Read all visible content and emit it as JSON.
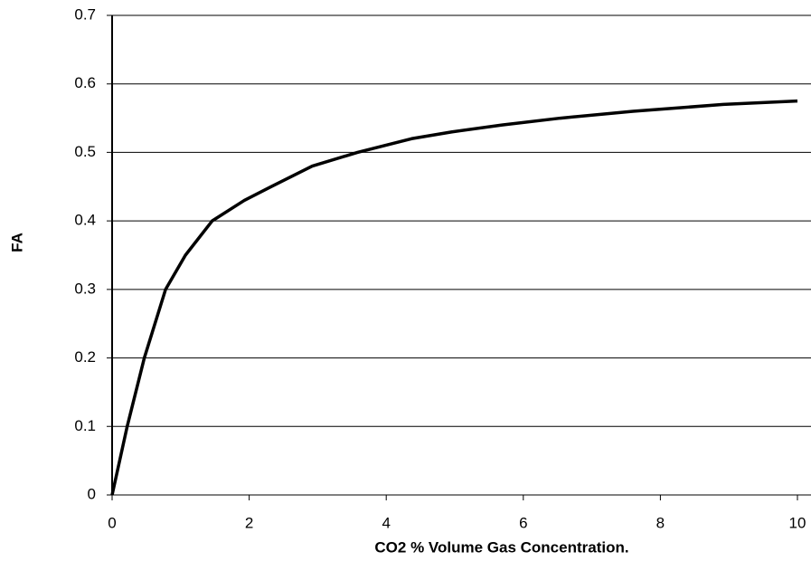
{
  "chart_data": {
    "type": "line",
    "x_label": "CO2 % Volume Gas Concentration.",
    "y_label": "FA",
    "xlim": [
      0,
      10
    ],
    "xticks": [
      0,
      2,
      4,
      6,
      8,
      10
    ],
    "ylim": [
      0,
      0.7
    ],
    "yticks": [
      0,
      0.1,
      0.2,
      0.3,
      0.4,
      0.5,
      0.6,
      0.7
    ],
    "grid": true,
    "series": [
      {
        "color": "#000000",
        "x": [
          0,
          0.22,
          0.47,
          0.78,
          1.07,
          1.46,
          1.93,
          2.32,
          2.92,
          3.58,
          4.37,
          4.96,
          5.69,
          6.54,
          7.6,
          8.92,
          10
        ],
        "values": [
          0,
          0.1,
          0.2,
          0.3,
          0.35,
          0.4,
          0.43,
          0.45,
          0.48,
          0.5,
          0.52,
          0.53,
          0.54,
          0.55,
          0.56,
          0.57,
          0.575
        ]
      }
    ]
  }
}
